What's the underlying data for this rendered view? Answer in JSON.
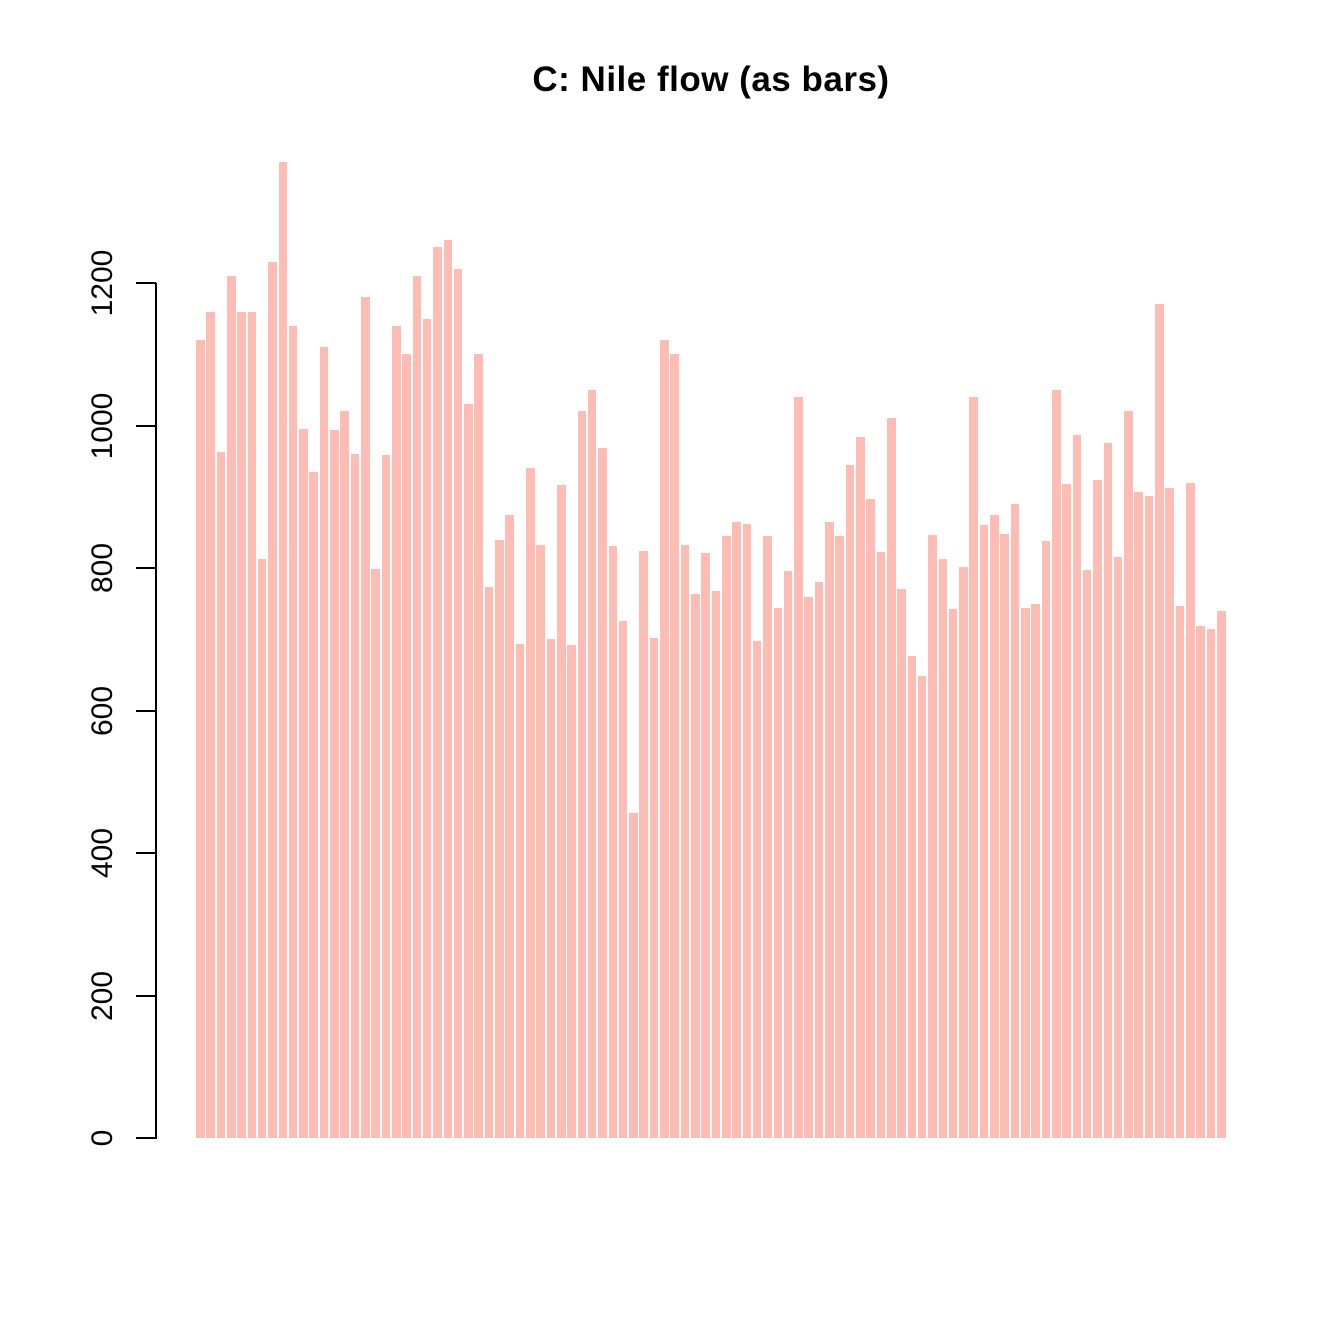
{
  "chart": {
    "title": "C: Nile flow (as bars)"
  },
  "chart_data": {
    "type": "bar",
    "title": "C: Nile flow (as bars)",
    "values": [
      1120,
      1160,
      963,
      1210,
      1160,
      1160,
      813,
      1230,
      1370,
      1140,
      995,
      935,
      1110,
      994,
      1020,
      960,
      1180,
      799,
      958,
      1140,
      1100,
      1210,
      1150,
      1250,
      1260,
      1220,
      1030,
      1100,
      774,
      840,
      874,
      694,
      940,
      833,
      701,
      916,
      692,
      1020,
      1050,
      969,
      831,
      726,
      456,
      824,
      702,
      1120,
      1100,
      832,
      764,
      821,
      768,
      845,
      864,
      862,
      698,
      845,
      744,
      796,
      1040,
      759,
      781,
      865,
      845,
      944,
      984,
      897,
      822,
      1010,
      771,
      676,
      649,
      846,
      812,
      742,
      801,
      1040,
      860,
      874,
      848,
      890,
      744,
      749,
      838,
      1050,
      918,
      986,
      797,
      923,
      975,
      815,
      1020,
      906,
      901,
      1170,
      912,
      746,
      919,
      718,
      714,
      740
    ],
    "n_bars": 100,
    "yticks": [
      0,
      200,
      400,
      600,
      800,
      1000,
      1200
    ],
    "ytick_labels": [
      "0",
      "200",
      "400",
      "600",
      "800",
      "1000",
      "1200"
    ],
    "ylim": [
      0,
      1370
    ],
    "xlabel": "",
    "ylabel": "",
    "grid": false,
    "legend": false,
    "bar_color": "#FDBCB4",
    "axis_color": "#000000",
    "background_color": "#FFFFFF"
  }
}
